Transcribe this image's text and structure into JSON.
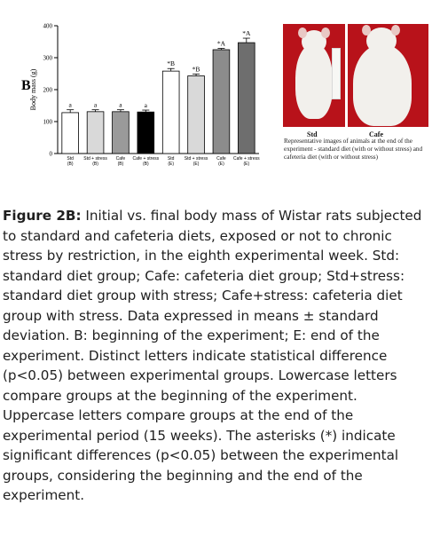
{
  "figure": {
    "panel_letter": "B",
    "photo_labels": {
      "left": "Std",
      "right": "Cafe"
    },
    "photo_caption": "Representative images of animals at the end of the experiment - standard diet (with or without stress) and cafeteria diet (with or without stress)",
    "caption_title": "Figure 2B:",
    "caption_body": " Initial vs. final body mass of Wistar rats subjected to standard and cafeteria diets, exposed or not to chronic stress by restriction, in the eighth experimental week. Std: standard diet group; Cafe: cafeteria diet group; Std+stress: standard diet group with stress; Cafe+stress: cafeteria diet group with stress. Data expressed in means ± standard deviation. B: beginning of the experiment; E: end of the experiment. Distinct letters indicate statistical difference (p<0.05) between experimental groups. Lowercase letters compare groups at the beginning of the experiment. Uppercase letters compare groups at the end of the experimental period (15 weeks). The asterisks (*) indicate significant differences (p<0.05) between the experimental groups, considering the beginning and the end of the experiment."
  },
  "chart_data": {
    "type": "bar",
    "title": "",
    "xlabel": "",
    "ylabel": "Body mass (g)",
    "ylim": [
      0,
      400
    ],
    "yticks": [
      0,
      100,
      200,
      300,
      400
    ],
    "grid": false,
    "categories": [
      {
        "name": "Std",
        "sub": "(B)"
      },
      {
        "name": "Std + stress",
        "sub": "(B)"
      },
      {
        "name": "Cafe",
        "sub": "(B)"
      },
      {
        "name": "Cafe + stress",
        "sub": "(B)"
      },
      {
        "name": "Std",
        "sub": "(E)"
      },
      {
        "name": "Std + stress",
        "sub": "(E)"
      },
      {
        "name": "Cafe",
        "sub": "(E)"
      },
      {
        "name": "Cafe + stress",
        "sub": "(E)"
      }
    ],
    "values": [
      128,
      131,
      131,
      130,
      258,
      243,
      325,
      347
    ],
    "errors": [
      9,
      6,
      6,
      6,
      8,
      6,
      4,
      14
    ],
    "bar_colors": [
      "#ffffff",
      "#d9d9d9",
      "#9a9a9a",
      "#000000",
      "#ffffff",
      "#d9d9d9",
      "#8c8c8c",
      "#6e6e6e"
    ],
    "annotations": [
      "a",
      "a",
      "a",
      "a",
      "*B",
      "*B",
      "*A",
      "*A"
    ]
  }
}
